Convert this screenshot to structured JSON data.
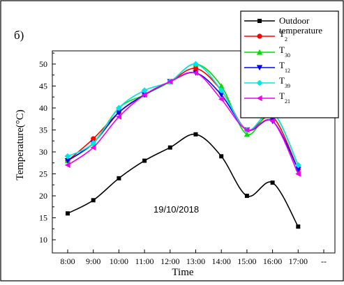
{
  "panel_label": "б)",
  "annotation": "19/10/2018",
  "chart_data": {
    "type": "line",
    "xlabel": "Time",
    "ylabel": "Temperature(°C)",
    "x": [
      "8:00",
      "9:00",
      "10:00",
      "11:00",
      "12:00",
      "13:00",
      "14:00",
      "15:00",
      "16:00",
      "17:00"
    ],
    "x_extra_tick_label": "--",
    "yticks": [
      10,
      15,
      20,
      25,
      30,
      35,
      40,
      45,
      50
    ],
    "ylim": [
      7,
      53
    ],
    "legend_placement": "top-right",
    "series": [
      {
        "name": "Outdoor temperature",
        "name_lines": [
          "Outdoor",
          "temperature"
        ],
        "sub": "",
        "color": "#000000",
        "marker": "square",
        "values": [
          16,
          19,
          24,
          28,
          31,
          34,
          29,
          20,
          23,
          13
        ]
      },
      {
        "name": "T2",
        "base": "T",
        "sub": "2",
        "color": "#ff0000",
        "marker": "circle",
        "values": [
          28,
          33,
          39,
          43,
          46,
          49,
          44,
          35,
          38,
          26
        ]
      },
      {
        "name": "T30",
        "base": "T",
        "sub": "30",
        "color": "#00dd00",
        "marker": "triangle-up",
        "values": [
          28,
          32,
          40,
          43,
          46,
          50,
          45,
          34,
          39,
          27
        ]
      },
      {
        "name": "T12",
        "base": "T",
        "sub": "12",
        "color": "#0000ff",
        "marker": "triangle-down",
        "values": [
          28,
          32,
          39,
          43,
          46,
          48,
          43,
          35,
          37,
          26
        ]
      },
      {
        "name": "T39",
        "base": "T",
        "sub": "39",
        "color": "#00e5e5",
        "marker": "diamond",
        "values": [
          29,
          32,
          40,
          44,
          46,
          50,
          44,
          35,
          39,
          27
        ]
      },
      {
        "name": "T21",
        "base": "T",
        "sub": "21",
        "color": "#ee00ee",
        "marker": "triangle-left",
        "values": [
          27,
          31,
          38,
          43,
          46,
          48,
          42,
          35,
          37,
          25
        ]
      }
    ]
  }
}
